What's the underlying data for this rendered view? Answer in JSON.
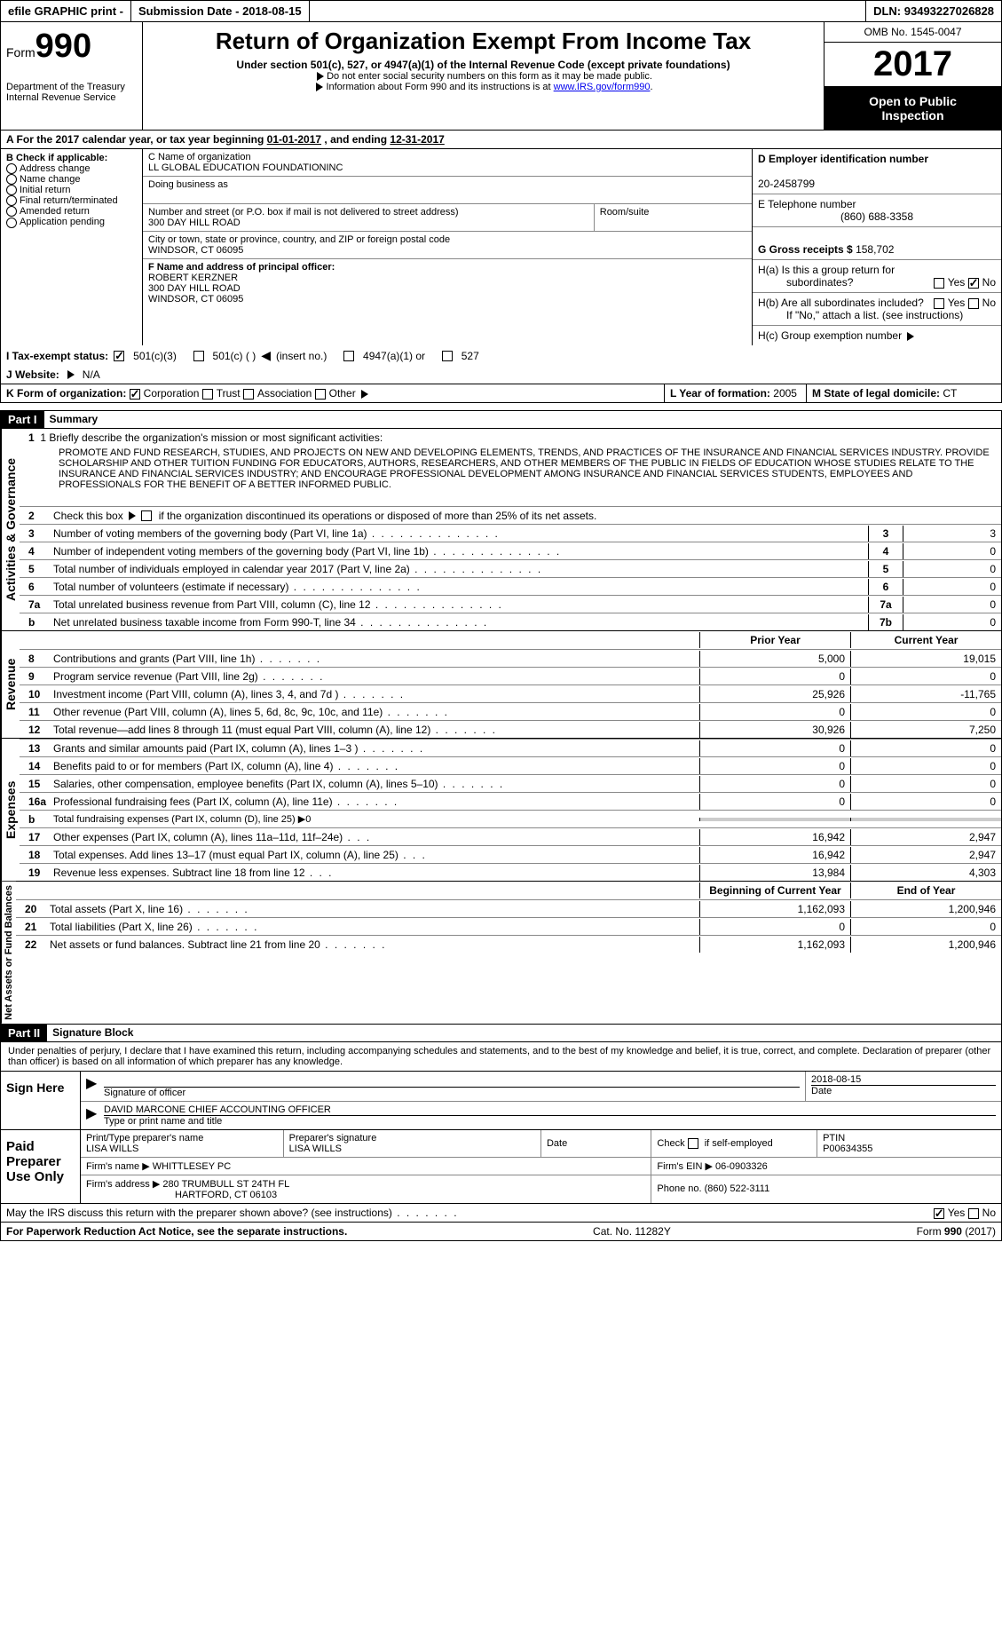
{
  "top": {
    "efile": "efile GRAPHIC print -",
    "sub_label": "Submission Date -",
    "sub_date": "2018-08-15",
    "dln_label": "DLN:",
    "dln": "93493227026828"
  },
  "header": {
    "form_word": "Form",
    "form_num": "990",
    "dept1": "Department of the Treasury",
    "dept2": "Internal Revenue Service",
    "title": "Return of Organization Exempt From Income Tax",
    "sub": "Under section 501(c), 527, or 4947(a)(1) of the Internal Revenue Code (except private foundations)",
    "note1": "Do not enter social security numbers on this form as it may be made public.",
    "note2_a": "Information about Form 990 and its instructions is at ",
    "note2_link": "www.IRS.gov/form990",
    "omb": "OMB No. 1545-0047",
    "year": "2017",
    "open1": "Open to Public",
    "open2": "Inspection"
  },
  "rowA": {
    "text_a": "A  For the 2017 calendar year, or tax year beginning ",
    "begin": "01-01-2017",
    "mid": "  , and ending ",
    "end": "12-31-2017"
  },
  "B": {
    "title": "B Check if applicable:",
    "items": [
      "Address change",
      "Name change",
      "Initial return",
      "Final return/terminated",
      "Amended return",
      "Application pending"
    ]
  },
  "C": {
    "name_lbl": "C Name of organization",
    "name": "LL GLOBAL EDUCATION FOUNDATIONINC",
    "dba_lbl": "Doing business as",
    "dba": "",
    "street_lbl": "Number and street (or P.O. box if mail is not delivered to street address)",
    "room_lbl": "Room/suite",
    "street": "300 DAY HILL ROAD",
    "city_lbl": "City or town, state or province, country, and ZIP or foreign postal code",
    "city": "WINDSOR, CT  06095",
    "officer_lbl": "F Name and address of principal officer:",
    "officer_name": "ROBERT KERZNER",
    "officer_street": "300 DAY HILL ROAD",
    "officer_city": "WINDSOR, CT  06095"
  },
  "D": {
    "ein_lbl": "D Employer identification number",
    "ein": "20-2458799",
    "tel_lbl": "E Telephone number",
    "tel": "(860) 688-3358",
    "gross_lbl": "G Gross receipts $",
    "gross": "158,702",
    "ha_lbl": "H(a)  Is this a group return for",
    "ha_lbl2": "subordinates?",
    "hb_lbl": "H(b)  Are all subordinates included?",
    "hb_note": "If \"No,\" attach a list. (see instructions)",
    "hc_lbl": "H(c)  Group exemption number",
    "yes": "Yes",
    "no": "No"
  },
  "I": {
    "lbl": "I  Tax-exempt status:",
    "opts": [
      "501(c)(3)",
      "501(c) (  )",
      "(insert no.)",
      "4947(a)(1) or",
      "527"
    ]
  },
  "J": {
    "lbl": "J  Website:",
    "val": "N/A"
  },
  "K": {
    "lbl": "K Form of organization:",
    "opts": [
      "Corporation",
      "Trust",
      "Association",
      "Other"
    ]
  },
  "L": {
    "lbl": "L Year of formation:",
    "val": "2005"
  },
  "M": {
    "lbl": "M State of legal domicile:",
    "val": "CT"
  },
  "part1": {
    "hdr": "Part I",
    "title": "Summary",
    "vlabel_ag": "Activities & Governance",
    "vlabel_rev": "Revenue",
    "vlabel_exp": "Expenses",
    "vlabel_net": "Net Assets or Fund Balances",
    "line1_lbl": "1  Briefly describe the organization's mission or most significant activities:",
    "mission": "PROMOTE AND FUND RESEARCH, STUDIES, AND PROJECTS ON NEW AND DEVELOPING ELEMENTS, TRENDS, AND PRACTICES OF THE INSURANCE AND FINANCIAL SERVICES INDUSTRY. PROVIDE SCHOLARSHIP AND OTHER TUITION FUNDING FOR EDUCATORS, AUTHORS, RESEARCHERS, AND OTHER MEMBERS OF THE PUBLIC IN FIELDS OF EDUCATION WHOSE STUDIES RELATE TO THE INSURANCE AND FINANCIAL SERVICES INDUSTRY; AND ENCOURAGE PROFESSIONAL DEVELOPMENT AMONG INSURANCE AND FINANCIAL SERVICES STUDENTS, EMPLOYEES AND PROFESSIONALS FOR THE BENEFIT OF A BETTER INFORMED PUBLIC.",
    "line2": "2   Check this box ▶       if the organization discontinued its operations or disposed of more than 25% of its net assets.",
    "lines_boxed": [
      {
        "n": "3",
        "t": "Number of voting members of the governing body (Part VI, line 1a)",
        "box": "3",
        "val": "3"
      },
      {
        "n": "4",
        "t": "Number of independent voting members of the governing body (Part VI, line 1b)",
        "box": "4",
        "val": "0"
      },
      {
        "n": "5",
        "t": "Total number of individuals employed in calendar year 2017 (Part V, line 2a)",
        "box": "5",
        "val": "0"
      },
      {
        "n": "6",
        "t": "Total number of volunteers (estimate if necessary)",
        "box": "6",
        "val": "0"
      },
      {
        "n": "7a",
        "t": "Total unrelated business revenue from Part VIII, column (C), line 12",
        "box": "7a",
        "val": "0"
      },
      {
        "n": "b",
        "t": "Net unrelated business taxable income from Form 990-T, line 34",
        "box": "7b",
        "val": "0"
      }
    ],
    "col_hdr1": "Prior Year",
    "col_hdr2": "Current Year",
    "rev_lines": [
      {
        "n": "8",
        "t": "Contributions and grants (Part VIII, line 1h)",
        "c1": "5,000",
        "c2": "19,015"
      },
      {
        "n": "9",
        "t": "Program service revenue (Part VIII, line 2g)",
        "c1": "0",
        "c2": "0"
      },
      {
        "n": "10",
        "t": "Investment income (Part VIII, column (A), lines 3, 4, and 7d )",
        "c1": "25,926",
        "c2": "-11,765"
      },
      {
        "n": "11",
        "t": "Other revenue (Part VIII, column (A), lines 5, 6d, 8c, 9c, 10c, and 11e)",
        "c1": "0",
        "c2": "0"
      },
      {
        "n": "12",
        "t": "Total revenue—add lines 8 through 11 (must equal Part VIII, column (A), line 12)",
        "c1": "30,926",
        "c2": "7,250"
      }
    ],
    "exp_lines": [
      {
        "n": "13",
        "t": "Grants and similar amounts paid (Part IX, column (A), lines 1–3 )",
        "c1": "0",
        "c2": "0"
      },
      {
        "n": "14",
        "t": "Benefits paid to or for members (Part IX, column (A), line 4)",
        "c1": "0",
        "c2": "0"
      },
      {
        "n": "15",
        "t": "Salaries, other compensation, employee benefits (Part IX, column (A), lines 5–10)",
        "c1": "0",
        "c2": "0"
      },
      {
        "n": "16a",
        "t": "Professional fundraising fees (Part IX, column (A), line 11e)",
        "c1": "0",
        "c2": "0"
      }
    ],
    "line16b": {
      "n": "b",
      "t": "Total fundraising expenses (Part IX, column (D), line 25) ▶0"
    },
    "exp_lines2": [
      {
        "n": "17",
        "t": "Other expenses (Part IX, column (A), lines 11a–11d, 11f–24e)",
        "c1": "16,942",
        "c2": "2,947"
      },
      {
        "n": "18",
        "t": "Total expenses. Add lines 13–17 (must equal Part IX, column (A), line 25)",
        "c1": "16,942",
        "c2": "2,947"
      },
      {
        "n": "19",
        "t": "Revenue less expenses. Subtract line 18 from line 12",
        "c1": "13,984",
        "c2": "4,303"
      }
    ],
    "net_hdr1": "Beginning of Current Year",
    "net_hdr2": "End of Year",
    "net_lines": [
      {
        "n": "20",
        "t": "Total assets (Part X, line 16)",
        "c1": "1,162,093",
        "c2": "1,200,946"
      },
      {
        "n": "21",
        "t": "Total liabilities (Part X, line 26)",
        "c1": "0",
        "c2": "0"
      },
      {
        "n": "22",
        "t": "Net assets or fund balances. Subtract line 21 from line 20",
        "c1": "1,162,093",
        "c2": "1,200,946"
      }
    ]
  },
  "part2": {
    "hdr": "Part II",
    "title": "Signature Block",
    "perjury": "Under penalties of perjury, I declare that I have examined this return, including accompanying schedules and statements, and to the best of my knowledge and belief, it is true, correct, and complete. Declaration of preparer (other than officer) is based on all information of which preparer has any knowledge.",
    "sign_here": "Sign Here",
    "sig_officer": "Signature of officer",
    "date_lbl": "Date",
    "sig_date": "2018-08-15",
    "officer_name": "DAVID MARCONE  CHIEF ACCOUNTING OFFICER",
    "officer_sub": "Type or print name and title",
    "paid_hdr": "Paid Preparer Use Only",
    "prep_name_lbl": "Print/Type preparer's name",
    "prep_name": "LISA WILLS",
    "prep_sig_lbl": "Preparer's signature",
    "prep_sig": "LISA WILLS",
    "check_if": "Check         if self-employed",
    "ptin_lbl": "PTIN",
    "ptin": "P00634355",
    "firm_name_lbl": "Firm's name      ▶",
    "firm_name": "WHITTLESEY PC",
    "firm_ein_lbl": "Firm's EIN ▶",
    "firm_ein": "06-0903326",
    "firm_addr_lbl": "Firm's address ▶",
    "firm_addr1": "280 TRUMBULL ST 24TH FL",
    "firm_addr2": "HARTFORD, CT  06103",
    "phone_lbl": "Phone no.",
    "phone": "(860) 522-3111",
    "discuss": "May the IRS discuss this return with the preparer shown above? (see instructions)"
  },
  "footer": {
    "pra": "For Paperwork Reduction Act Notice, see the separate instructions.",
    "cat": "Cat. No. 11282Y",
    "form": "Form 990 (2017)"
  }
}
